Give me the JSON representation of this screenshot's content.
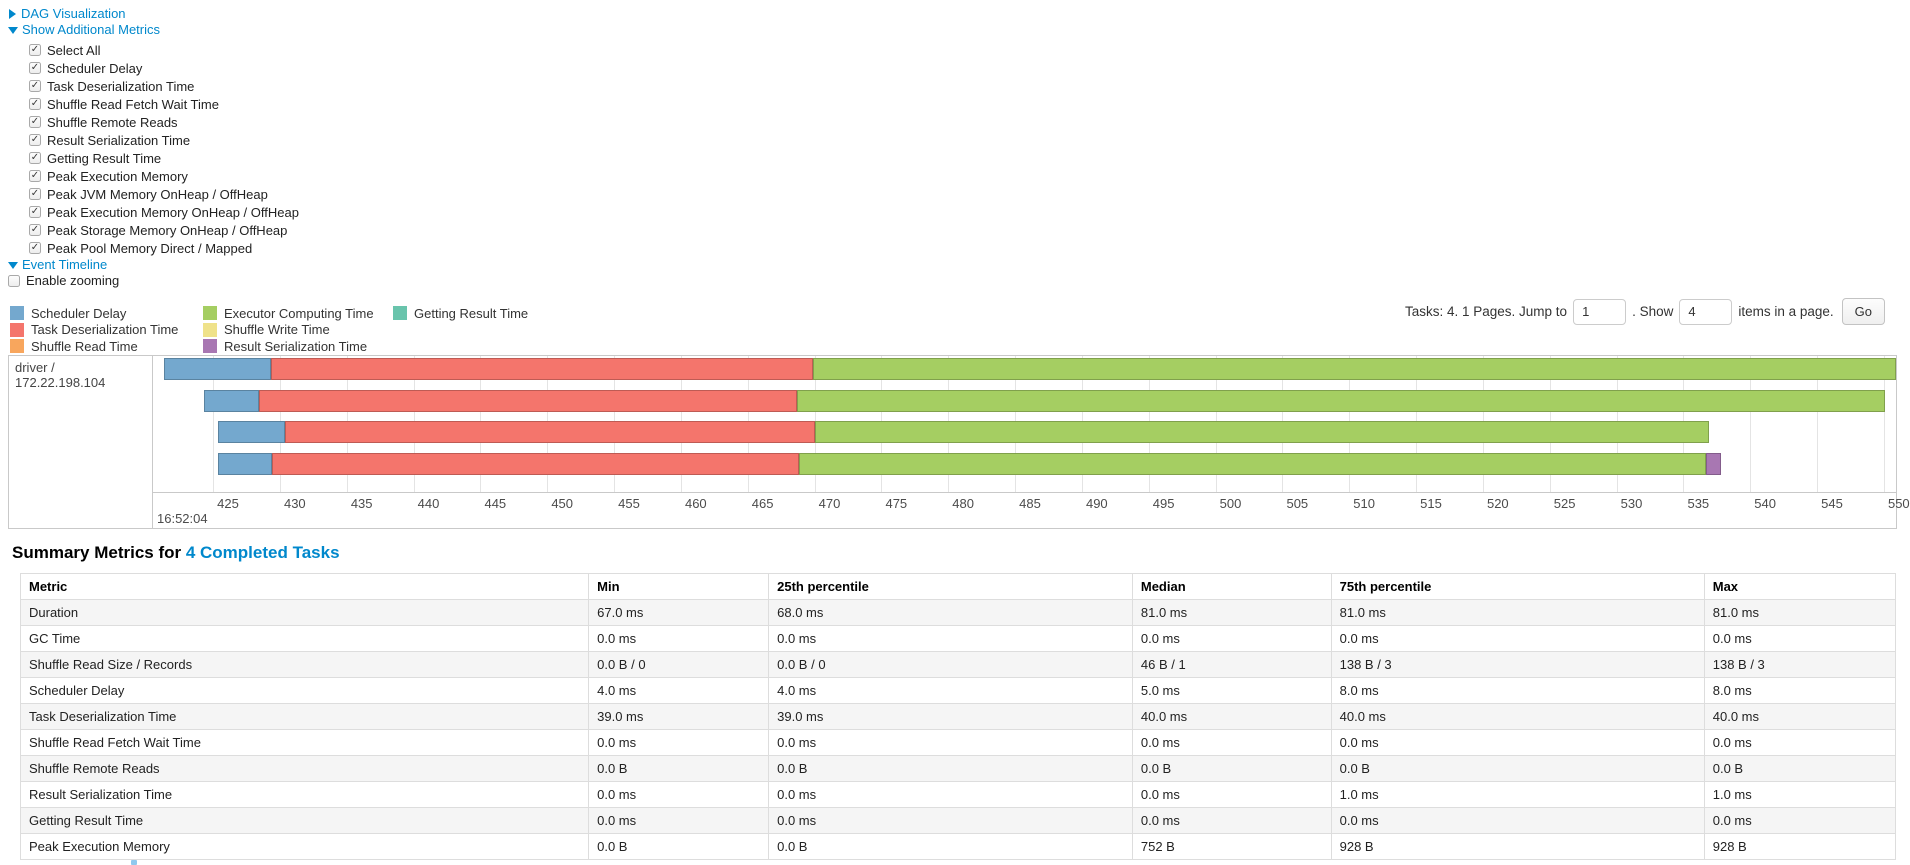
{
  "colors": {
    "link": "#0088cc"
  },
  "toggles": {
    "dag": {
      "label": "DAG Visualization",
      "state": "collapsed"
    },
    "additional_metrics": {
      "label": "Show Additional Metrics",
      "state": "expanded"
    },
    "checkboxes": [
      {
        "label": "Select All",
        "checked": true
      },
      {
        "label": "Scheduler Delay",
        "checked": true
      },
      {
        "label": "Task Deserialization Time",
        "checked": true
      },
      {
        "label": "Shuffle Read Fetch Wait Time",
        "checked": true
      },
      {
        "label": "Shuffle Remote Reads",
        "checked": true
      },
      {
        "label": "Result Serialization Time",
        "checked": true
      },
      {
        "label": "Getting Result Time",
        "checked": true
      },
      {
        "label": "Peak Execution Memory",
        "checked": true
      },
      {
        "label": "Peak JVM Memory OnHeap / OffHeap",
        "checked": true
      },
      {
        "label": "Peak Execution Memory OnHeap / OffHeap",
        "checked": true
      },
      {
        "label": "Peak Storage Memory OnHeap / OffHeap",
        "checked": true
      },
      {
        "label": "Peak Pool Memory Direct / Mapped",
        "checked": true
      }
    ],
    "event_timeline": {
      "label": "Event Timeline",
      "state": "expanded"
    },
    "enable_zooming": {
      "label": "Enable zooming",
      "checked": false
    }
  },
  "pagination": {
    "summary_text": "Tasks: 4. 1 Pages. Jump to",
    "jump_value": "1",
    "show_label": ". Show",
    "show_value": "4",
    "suffix_text": "items in a page.",
    "go_label": "Go"
  },
  "timeline": {
    "group_label": "driver / 172.22.198.104",
    "types": {
      "scheduler_delay": {
        "label": "Scheduler Delay",
        "color": "#74A8CE"
      },
      "task_deserialization": {
        "label": "Task Deserialization Time",
        "color": "#F4756C"
      },
      "shuffle_read": {
        "label": "Shuffle Read Time",
        "color": "#F8A65D"
      },
      "executor_computing": {
        "label": "Executor Computing Time",
        "color": "#A5CE62"
      },
      "shuffle_write": {
        "label": "Shuffle Write Time",
        "color": "#EFE28A"
      },
      "result_serialization": {
        "label": "Result Serialization Time",
        "color": "#A877B2"
      },
      "getting_result": {
        "label": "Getting Result Time",
        "color": "#69C4AC"
      }
    },
    "legend_columns": [
      [
        "scheduler_delay",
        "task_deserialization",
        "shuffle_read"
      ],
      [
        "executor_computing",
        "shuffle_write",
        "result_serialization"
      ],
      [
        "getting_result"
      ]
    ],
    "axis": {
      "min": 420.5,
      "max": 550.9,
      "ticks": [
        425,
        430,
        435,
        440,
        445,
        450,
        455,
        460,
        465,
        470,
        475,
        480,
        485,
        490,
        495,
        500,
        505,
        510,
        515,
        520,
        525,
        530,
        535,
        540,
        545,
        550
      ],
      "major_label": "16:52:04"
    },
    "tasks": [
      {
        "segments": [
          {
            "type": "scheduler_delay",
            "start": 421.3,
            "end": 429.3
          },
          {
            "type": "task_deserialization",
            "start": 429.3,
            "end": 469.9
          },
          {
            "type": "executor_computing",
            "start": 469.9,
            "end": 550.9
          }
        ]
      },
      {
        "segments": [
          {
            "type": "scheduler_delay",
            "start": 424.3,
            "end": 428.4
          },
          {
            "type": "task_deserialization",
            "start": 428.4,
            "end": 468.7
          },
          {
            "type": "executor_computing",
            "start": 468.7,
            "end": 550.1
          }
        ]
      },
      {
        "segments": [
          {
            "type": "scheduler_delay",
            "start": 425.4,
            "end": 430.4
          },
          {
            "type": "task_deserialization",
            "start": 430.4,
            "end": 470.0
          },
          {
            "type": "executor_computing",
            "start": 470.0,
            "end": 536.9
          }
        ]
      },
      {
        "segments": [
          {
            "type": "scheduler_delay",
            "start": 425.4,
            "end": 429.4
          },
          {
            "type": "task_deserialization",
            "start": 429.4,
            "end": 468.8
          },
          {
            "type": "executor_computing",
            "start": 468.8,
            "end": 536.7
          },
          {
            "type": "result_serialization",
            "start": 536.7,
            "end": 537.8
          }
        ]
      }
    ]
  },
  "summary": {
    "title_prefix": "Summary Metrics for ",
    "title_link": "4 Completed Tasks",
    "columns": [
      "Metric",
      "Min",
      "25th percentile",
      "Median",
      "75th percentile",
      "Max"
    ],
    "column_widths_pct": [
      30.3,
      9.6,
      19.4,
      10.6,
      19.9,
      10.2
    ],
    "rows": [
      [
        "Duration",
        "67.0 ms",
        "68.0 ms",
        "81.0 ms",
        "81.0 ms",
        "81.0 ms"
      ],
      [
        "GC Time",
        "0.0 ms",
        "0.0 ms",
        "0.0 ms",
        "0.0 ms",
        "0.0 ms"
      ],
      [
        "Shuffle Read Size / Records",
        "0.0 B / 0",
        "0.0 B / 0",
        "46 B / 1",
        "138 B / 3",
        "138 B / 3"
      ],
      [
        "Scheduler Delay",
        "4.0 ms",
        "4.0 ms",
        "5.0 ms",
        "8.0 ms",
        "8.0 ms"
      ],
      [
        "Task Deserialization Time",
        "39.0 ms",
        "39.0 ms",
        "40.0 ms",
        "40.0 ms",
        "40.0 ms"
      ],
      [
        "Shuffle Read Fetch Wait Time",
        "0.0 ms",
        "0.0 ms",
        "0.0 ms",
        "0.0 ms",
        "0.0 ms"
      ],
      [
        "Shuffle Remote Reads",
        "0.0 B",
        "0.0 B",
        "0.0 B",
        "0.0 B",
        "0.0 B"
      ],
      [
        "Result Serialization Time",
        "0.0 ms",
        "0.0 ms",
        "0.0 ms",
        "1.0 ms",
        "1.0 ms"
      ],
      [
        "Getting Result Time",
        "0.0 ms",
        "0.0 ms",
        "0.0 ms",
        "0.0 ms",
        "0.0 ms"
      ],
      [
        "Peak Execution Memory",
        "0.0 B",
        "0.0 B",
        "752 B",
        "928 B",
        "928 B"
      ]
    ]
  }
}
